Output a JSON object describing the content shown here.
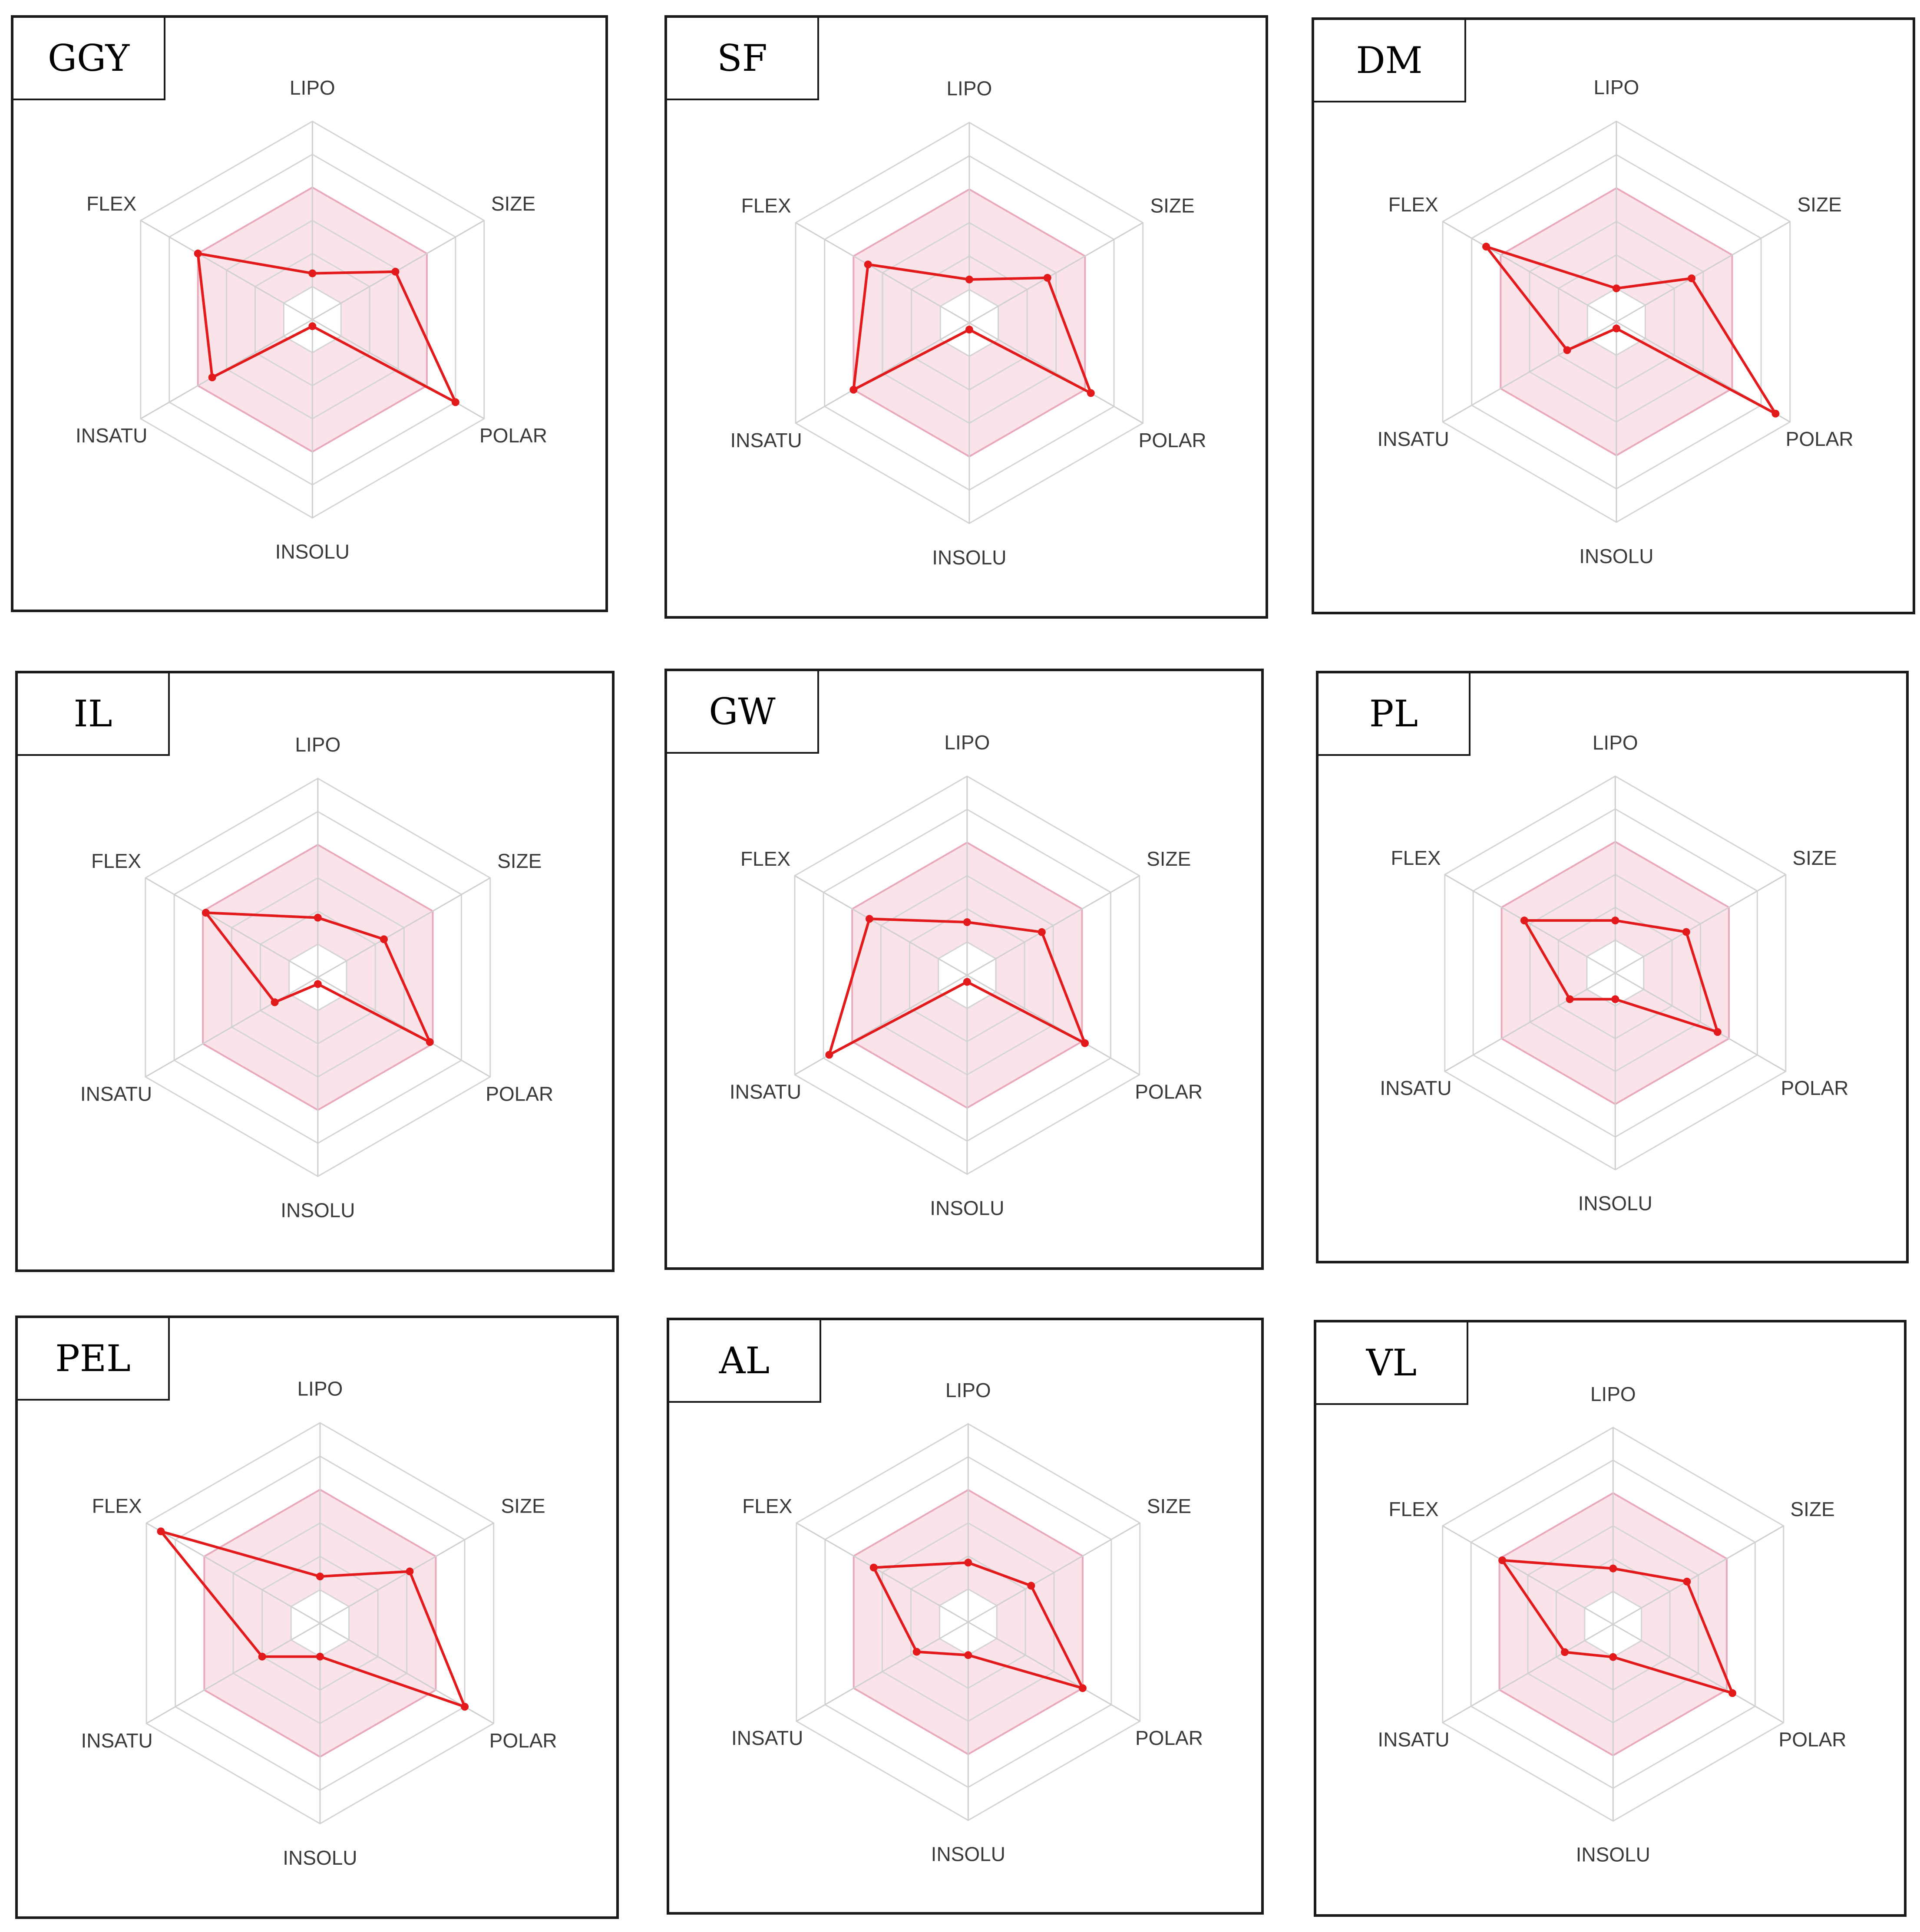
{
  "chart_data": [
    {
      "type": "radar",
      "title": "GGY",
      "axes": [
        "LIPO",
        "SIZE",
        "POLAR",
        "INSOLU",
        "INSATU",
        "FLEX"
      ],
      "range": [
        -2,
        4
      ],
      "optimal_range": [
        -1,
        2
      ],
      "values": [
        -0.6,
        0.9,
        3.0,
        -1.8,
        1.5,
        2.0
      ]
    },
    {
      "type": "radar",
      "title": "SF",
      "axes": [
        "LIPO",
        "SIZE",
        "POLAR",
        "INSOLU",
        "INSATU",
        "FLEX"
      ],
      "range": [
        -2,
        4
      ],
      "optimal_range": [
        -1,
        2
      ],
      "values": [
        -0.7,
        0.7,
        2.2,
        -1.8,
        2.0,
        1.5
      ]
    },
    {
      "type": "radar",
      "title": "DM",
      "axes": [
        "LIPO",
        "SIZE",
        "POLAR",
        "INSOLU",
        "INSATU",
        "FLEX"
      ],
      "range": [
        -2,
        4
      ],
      "optimal_range": [
        -1,
        2
      ],
      "values": [
        -1.0,
        0.6,
        3.5,
        -1.8,
        -0.3,
        2.5
      ]
    },
    {
      "type": "radar",
      "title": "IL",
      "axes": [
        "LIPO",
        "SIZE",
        "POLAR",
        "INSOLU",
        "INSATU",
        "FLEX"
      ],
      "range": [
        -2,
        4
      ],
      "optimal_range": [
        -1,
        2
      ],
      "values": [
        -0.2,
        0.3,
        1.9,
        -1.8,
        -0.5,
        1.9
      ]
    },
    {
      "type": "radar",
      "title": "GW",
      "axes": [
        "LIPO",
        "SIZE",
        "POLAR",
        "INSOLU",
        "INSATU",
        "FLEX"
      ],
      "range": [
        -2,
        4
      ],
      "optimal_range": [
        -1,
        2
      ],
      "values": [
        -0.4,
        0.6,
        2.1,
        -1.8,
        2.8,
        1.4
      ]
    },
    {
      "type": "radar",
      "title": "PL",
      "axes": [
        "LIPO",
        "SIZE",
        "POLAR",
        "INSOLU",
        "INSATU",
        "FLEX"
      ],
      "range": [
        -2,
        4
      ],
      "optimal_range": [
        -1,
        2
      ],
      "values": [
        -0.4,
        0.5,
        1.6,
        -1.2,
        -0.4,
        1.2
      ]
    },
    {
      "type": "radar",
      "title": "PEL",
      "axes": [
        "LIPO",
        "SIZE",
        "POLAR",
        "INSOLU",
        "INSATU",
        "FLEX"
      ],
      "range": [
        -2,
        4
      ],
      "optimal_range": [
        -1,
        2
      ],
      "values": [
        -0.6,
        1.1,
        3.0,
        -1.0,
        0.0,
        3.5
      ]
    },
    {
      "type": "radar",
      "title": "AL",
      "axes": [
        "LIPO",
        "SIZE",
        "POLAR",
        "INSOLU",
        "INSATU",
        "FLEX"
      ],
      "range": [
        -2,
        4
      ],
      "optimal_range": [
        -1,
        2
      ],
      "values": [
        -0.2,
        0.2,
        2.0,
        -1.0,
        -0.2,
        1.3
      ]
    },
    {
      "type": "radar",
      "title": "VL",
      "axes": [
        "LIPO",
        "SIZE",
        "POLAR",
        "INSOLU",
        "INSATU",
        "FLEX"
      ],
      "range": [
        -2,
        4
      ],
      "optimal_range": [
        -1,
        2
      ],
      "values": [
        -0.3,
        0.6,
        2.2,
        -1.0,
        -0.3,
        1.9
      ]
    }
  ],
  "style": {
    "line_color": "#e31a1c",
    "optimal_fill": "#fbe3ea",
    "optimal_stroke": "#e8a9bb",
    "grid_color": "#d4d4d4",
    "axis_color": "#cfcfcf"
  }
}
